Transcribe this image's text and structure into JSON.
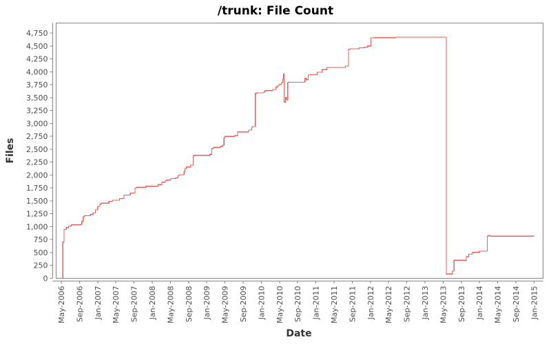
{
  "chart_data": {
    "type": "line",
    "title": "/trunk: File Count",
    "xlabel": "Date",
    "ylabel": "Files",
    "grid": "off",
    "legend": "none",
    "background_color": "#ffffff",
    "line_color": "#e85d58",
    "axis_color": "#848484",
    "tick_label_color": "#4a4a4a",
    "x_encoding": "months since May-2006",
    "xtick_months": [
      0,
      4,
      8,
      12,
      16,
      20,
      24,
      28,
      32,
      36,
      40,
      44,
      48,
      52,
      56,
      60,
      64,
      68,
      72,
      76,
      80,
      84,
      88,
      92,
      96,
      100,
      104
    ],
    "xtick_labels": [
      "May-2006",
      "Sep-2006",
      "Jan-2007",
      "May-2007",
      "Sep-2007",
      "Jan-2008",
      "May-2008",
      "Sep-2008",
      "Jan-2009",
      "May-2009",
      "Sep-2009",
      "Jan-2010",
      "May-2010",
      "Sep-2010",
      "Jan-2011",
      "May-2011",
      "Sep-2011",
      "Jan-2012",
      "May-2012",
      "Sep-2012",
      "Jan-2013",
      "May-2013",
      "Sep-2013",
      "Jan-2014",
      "May-2014",
      "Sep-2014",
      "Jan-2015"
    ],
    "ytick_values": [
      0,
      250,
      500,
      750,
      1000,
      1250,
      1500,
      1750,
      2000,
      2250,
      2500,
      2750,
      3000,
      3250,
      3500,
      3750,
      4000,
      4250,
      4500,
      4750
    ],
    "ytick_labels": [
      "0",
      "250",
      "500",
      "750",
      "1,000",
      "1,250",
      "1,500",
      "1,750",
      "2,000",
      "2,250",
      "2,500",
      "2,750",
      "3,000",
      "3,250",
      "3,500",
      "3,750",
      "4,000",
      "4,250",
      "4,500",
      "4,750"
    ],
    "ylim": [
      0,
      4950
    ],
    "xlim_months": [
      -1.2,
      105.8
    ],
    "series": [
      {
        "name": "/trunk file count",
        "step": "after",
        "points": [
          [
            0.35,
            0
          ],
          [
            0.35,
            700
          ],
          [
            0.6,
            945
          ],
          [
            1.1,
            980
          ],
          [
            1.6,
            1010
          ],
          [
            2.2,
            1035
          ],
          [
            4.3,
            1045
          ],
          [
            4.5,
            1100
          ],
          [
            4.8,
            1190
          ],
          [
            5.1,
            1210
          ],
          [
            6.4,
            1235
          ],
          [
            7.0,
            1265
          ],
          [
            7.5,
            1325
          ],
          [
            8.0,
            1390
          ],
          [
            8.5,
            1435
          ],
          [
            8.8,
            1455
          ],
          [
            10.5,
            1490
          ],
          [
            11.3,
            1510
          ],
          [
            12.8,
            1545
          ],
          [
            13.8,
            1610
          ],
          [
            15.2,
            1650
          ],
          [
            16.2,
            1745
          ],
          [
            16.5,
            1760
          ],
          [
            18.6,
            1780
          ],
          [
            21.3,
            1815
          ],
          [
            22.1,
            1860
          ],
          [
            22.9,
            1890
          ],
          [
            23.1,
            1900
          ],
          [
            24.1,
            1930
          ],
          [
            25.2,
            1945
          ],
          [
            25.7,
            1990
          ],
          [
            26.0,
            2005
          ],
          [
            27.0,
            2060
          ],
          [
            27.2,
            2125
          ],
          [
            27.5,
            2155
          ],
          [
            28.4,
            2190
          ],
          [
            29.0,
            2370
          ],
          [
            29.2,
            2380
          ],
          [
            32.7,
            2400
          ],
          [
            33.1,
            2515
          ],
          [
            33.5,
            2535
          ],
          [
            35.0,
            2555
          ],
          [
            35.5,
            2577
          ],
          [
            35.8,
            2725
          ],
          [
            36.0,
            2747
          ],
          [
            38.1,
            2760
          ],
          [
            38.8,
            2835
          ],
          [
            41.2,
            2870
          ],
          [
            41.9,
            2925
          ],
          [
            42.1,
            2937
          ],
          [
            42.7,
            3581
          ],
          [
            43.0,
            3590
          ],
          [
            44.6,
            3626
          ],
          [
            44.9,
            3634
          ],
          [
            46.5,
            3657
          ],
          [
            47.2,
            3701
          ],
          [
            47.5,
            3723
          ],
          [
            47.9,
            3759
          ],
          [
            48.4,
            3790
          ],
          [
            48.7,
            3857
          ],
          [
            48.9,
            3954
          ],
          [
            49.0,
            3413
          ],
          [
            49.3,
            3501
          ],
          [
            49.5,
            3457
          ],
          [
            49.8,
            3790
          ],
          [
            50.0,
            3799
          ],
          [
            53.6,
            3879
          ],
          [
            53.9,
            3848
          ],
          [
            54.3,
            3937
          ],
          [
            54.7,
            3946
          ],
          [
            56.3,
            3990
          ],
          [
            57.4,
            4040
          ],
          [
            58.4,
            4085
          ],
          [
            62.5,
            4110
          ],
          [
            63.2,
            4434
          ],
          [
            63.5,
            4443
          ],
          [
            65.5,
            4466
          ],
          [
            66.7,
            4479
          ],
          [
            67.4,
            4501
          ],
          [
            68.1,
            4657
          ],
          [
            68.9,
            4660
          ],
          [
            73.5,
            4672
          ],
          [
            84.7,
            4672
          ],
          [
            84.7,
            80
          ],
          [
            86.0,
            137
          ],
          [
            86.4,
            347
          ],
          [
            89.1,
            413
          ],
          [
            89.6,
            466
          ],
          [
            90.4,
            493
          ],
          [
            90.8,
            501
          ],
          [
            92.0,
            524
          ],
          [
            93.7,
            815
          ],
          [
            94.0,
            830
          ],
          [
            94.3,
            815
          ],
          [
            104.0,
            815
          ]
        ]
      }
    ]
  }
}
